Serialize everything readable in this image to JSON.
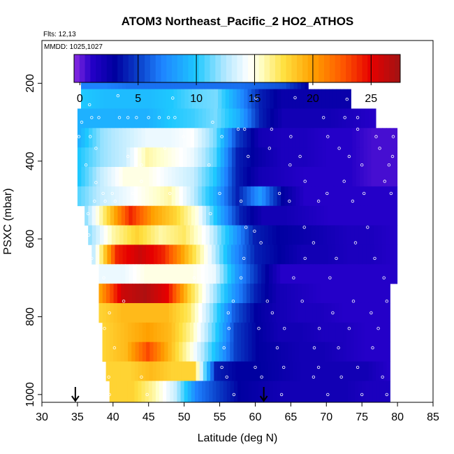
{
  "chart_data": {
    "type": "heatmap",
    "title": "ATOM3 Northeast_Pacific_2 HO2_ATHOS",
    "subtitle_lines": [
      "Flts: 12,13",
      "MMDD: 1025,1027"
    ],
    "xlabel": "Latitude (deg N)",
    "ylabel": "PSXC (mbar)",
    "xlim": [
      30,
      85
    ],
    "ylim": [
      1020,
      90
    ],
    "x_ticks": [
      30,
      35,
      40,
      45,
      50,
      55,
      60,
      65,
      70,
      75,
      80,
      85
    ],
    "y_ticks": [
      200,
      400,
      600,
      800,
      1000
    ],
    "colorbar": {
      "range": [
        -0.5,
        27.5
      ],
      "ticks": [
        0,
        5,
        10,
        15,
        20,
        25
      ],
      "major_tick_marks": [
        5,
        10,
        15,
        20,
        25
      ],
      "stops": [
        {
          "v": -0.5,
          "c": "#8a2be2"
        },
        {
          "v": 1.0,
          "c": "#2400c8"
        },
        {
          "v": 3.0,
          "c": "#0000a0"
        },
        {
          "v": 5.0,
          "c": "#0a3ec8"
        },
        {
          "v": 7.0,
          "c": "#1e82ff"
        },
        {
          "v": 10.0,
          "c": "#1ec8ff"
        },
        {
          "v": 12.5,
          "c": "#b4e8ff"
        },
        {
          "v": 14.5,
          "c": "#ffffff"
        },
        {
          "v": 15.5,
          "c": "#ffffc8"
        },
        {
          "v": 17.5,
          "c": "#ffe040"
        },
        {
          "v": 20.0,
          "c": "#ffa000"
        },
        {
          "v": 22.5,
          "c": "#ff5a00"
        },
        {
          "v": 25.0,
          "c": "#e60000"
        },
        {
          "v": 27.5,
          "c": "#a01414"
        }
      ]
    },
    "pressure_bins": [
      {
        "p": [
          175,
          215
        ],
        "lat": [
          35.5,
          67.5
        ],
        "values": [
          7,
          7,
          6.5,
          6.5,
          6.5,
          6.5,
          6.5,
          6.5,
          6,
          5.5,
          3
        ]
      },
      {
        "p": [
          215,
          265
        ],
        "lat": [
          35.5,
          73.5
        ],
        "values": [
          10,
          9.5,
          9.5,
          9.5,
          10,
          11,
          11.5,
          8,
          4,
          2.5,
          2.5,
          2.5,
          2.5
        ]
      },
      {
        "p": [
          265,
          315
        ],
        "lat": [
          35,
          77
        ],
        "values": [
          9,
          9,
          9,
          9,
          10,
          10.5,
          11.5,
          9,
          4,
          2,
          2,
          2,
          1.5,
          1
        ]
      },
      {
        "p": [
          315,
          365
        ],
        "lat": [
          35,
          80
        ],
        "values": [
          9,
          12,
          13,
          14,
          14,
          14.5,
          11.5,
          5,
          2,
          1.5,
          1.5,
          1,
          1,
          0.5,
          0.5
        ]
      },
      {
        "p": [
          365,
          415
        ],
        "lat": [
          35,
          80
        ],
        "values": [
          10,
          12,
          13,
          16,
          15,
          14,
          11,
          4,
          2.5,
          1.5,
          1.5,
          1,
          1,
          0.5,
          0.5
        ]
      },
      {
        "p": [
          415,
          465
        ],
        "lat": [
          35,
          80
        ],
        "values": [
          10,
          13,
          15,
          15,
          14,
          13,
          10,
          4,
          2,
          1.5,
          1,
          1,
          1,
          0.5,
          0.5
        ]
      },
      {
        "p": [
          465,
          515
        ],
        "lat": [
          35,
          80
        ],
        "values": [
          11,
          13,
          14,
          15,
          16,
          13,
          9,
          4,
          8,
          3,
          1,
          1,
          1,
          1,
          1
        ]
      },
      {
        "p": [
          515,
          565
        ],
        "lat": [
          36,
          80
        ],
        "values": [
          12,
          18,
          24,
          20,
          18,
          15,
          9,
          4,
          2,
          2,
          1.5,
          1,
          1,
          1,
          1
        ]
      },
      {
        "p": [
          565,
          615
        ],
        "lat": [
          36.5,
          80
        ],
        "values": [
          12,
          16,
          18,
          16,
          17,
          14,
          9,
          4,
          3,
          2.5,
          2,
          1.5,
          1.5,
          1
        ]
      },
      {
        "p": [
          615,
          665
        ],
        "lat": [
          37,
          80
        ],
        "values": [
          13,
          24,
          26,
          24,
          19,
          14,
          8,
          4,
          3,
          2,
          2,
          1.5,
          1.5,
          1
        ]
      },
      {
        "p": [
          665,
          715
        ],
        "lat": [
          38,
          80
        ],
        "values": [
          14,
          14,
          15,
          15,
          15,
          14,
          8,
          4,
          1,
          1,
          1,
          1,
          1,
          1
        ]
      },
      {
        "p": [
          715,
          765
        ],
        "lat": [
          38,
          79
        ],
        "values": [
          20,
          26,
          27,
          25,
          18,
          13,
          8,
          4,
          2,
          1.5,
          1,
          1,
          1,
          1
        ]
      },
      {
        "p": [
          765,
          815
        ],
        "lat": [
          38,
          79
        ],
        "values": [
          18,
          19,
          19,
          19,
          17,
          12,
          6,
          3,
          2,
          1.5,
          1.5,
          1,
          1,
          1
        ]
      },
      {
        "p": [
          815,
          865
        ],
        "lat": [
          38.5,
          79
        ],
        "values": [
          18,
          19,
          20,
          19,
          16,
          11,
          5,
          3,
          2,
          2,
          1.5,
          1.5,
          1,
          1
        ]
      },
      {
        "p": [
          865,
          915
        ],
        "lat": [
          38.5,
          79
        ],
        "values": [
          18,
          19,
          23,
          19,
          15,
          10,
          5,
          3,
          2.5,
          2,
          2,
          1.5,
          1,
          1
        ]
      },
      {
        "p": [
          915,
          965
        ],
        "lat": [
          39,
          79
        ],
        "values": [
          18,
          18,
          19,
          18,
          18,
          4,
          3,
          3,
          2.5,
          2,
          2,
          2,
          2,
          1
        ]
      },
      {
        "p": [
          965,
          1020
        ],
        "lat": [
          39.5,
          79
        ],
        "values": [
          18,
          18,
          16,
          13,
          7,
          5,
          3,
          2.5,
          2,
          2,
          2,
          2,
          1.5,
          1.5
        ]
      }
    ],
    "markers": [
      {
        "type": "arrow-down",
        "x": 34.7,
        "y": 1000
      },
      {
        "type": "arrow-down",
        "x": 61.2,
        "y": 1000
      }
    ],
    "data_points_style": "white open circles",
    "sample_points": [
      [
        37.5,
        180
      ],
      [
        60.7,
        183
      ],
      [
        63.5,
        190
      ],
      [
        66.3,
        183
      ],
      [
        40.7,
        232
      ],
      [
        36.7,
        255
      ],
      [
        65.6,
        237
      ],
      [
        72.9,
        241
      ],
      [
        48.4,
        238
      ],
      [
        60.1,
        238
      ],
      [
        37.0,
        288
      ],
      [
        38.0,
        288
      ],
      [
        40.9,
        288
      ],
      [
        42.1,
        288
      ],
      [
        43.3,
        288
      ],
      [
        45.0,
        288
      ],
      [
        46.5,
        288
      ],
      [
        47.8,
        288
      ],
      [
        48.7,
        288
      ],
      [
        69.6,
        288
      ],
      [
        72.6,
        288
      ],
      [
        74.4,
        288
      ],
      [
        35.6,
        300
      ],
      [
        54.0,
        300
      ],
      [
        57.6,
        318
      ],
      [
        58.5,
        318
      ],
      [
        62.3,
        318
      ],
      [
        74.4,
        318
      ],
      [
        35.2,
        337
      ],
      [
        36.8,
        337
      ],
      [
        49.9,
        337
      ],
      [
        55.3,
        337
      ],
      [
        65.0,
        337
      ],
      [
        70.2,
        337
      ],
      [
        77.0,
        337
      ],
      [
        79.4,
        337
      ],
      [
        37.6,
        367
      ],
      [
        47.3,
        367
      ],
      [
        62.0,
        367
      ],
      [
        71.8,
        367
      ],
      [
        77.5,
        367
      ],
      [
        42.1,
        388
      ],
      [
        59.0,
        388
      ],
      [
        66.3,
        388
      ],
      [
        73.2,
        388
      ],
      [
        79.3,
        388
      ],
      [
        36.2,
        410
      ],
      [
        44.0,
        410
      ],
      [
        53.5,
        410
      ],
      [
        64.9,
        410
      ],
      [
        75.0,
        410
      ],
      [
        78.8,
        410
      ],
      [
        37.6,
        455
      ],
      [
        44.0,
        452
      ],
      [
        67.0,
        452
      ],
      [
        72.5,
        452
      ],
      [
        78.2,
        452
      ],
      [
        38.6,
        483
      ],
      [
        39.9,
        483
      ],
      [
        42.8,
        483
      ],
      [
        48.0,
        483
      ],
      [
        55.0,
        483
      ],
      [
        63.4,
        483
      ],
      [
        70.1,
        483
      ],
      [
        75.3,
        483
      ],
      [
        79.1,
        483
      ],
      [
        37.4,
        503
      ],
      [
        38.9,
        503
      ],
      [
        40.3,
        503
      ],
      [
        58.0,
        503
      ],
      [
        64.8,
        503
      ],
      [
        68.9,
        503
      ],
      [
        73.7,
        503
      ],
      [
        36.5,
        535
      ],
      [
        53.7,
        535
      ],
      [
        58.7,
        570
      ],
      [
        59.9,
        580
      ],
      [
        66.9,
        570
      ],
      [
        75.8,
        570
      ],
      [
        36.6,
        590
      ],
      [
        60.8,
        610
      ],
      [
        68.2,
        610
      ],
      [
        74.1,
        610
      ],
      [
        37.0,
        650
      ],
      [
        58.4,
        650
      ],
      [
        67.0,
        650
      ],
      [
        71.4,
        650
      ],
      [
        76.8,
        650
      ],
      [
        38.7,
        700
      ],
      [
        51.4,
        700
      ],
      [
        58.0,
        700
      ],
      [
        65.4,
        700
      ],
      [
        70.5,
        700
      ],
      [
        78.1,
        700
      ],
      [
        41.5,
        760
      ],
      [
        52.7,
        760
      ],
      [
        56.9,
        760
      ],
      [
        61.7,
        760
      ],
      [
        66.6,
        760
      ],
      [
        73.8,
        760
      ],
      [
        78.5,
        760
      ],
      [
        39.5,
        790
      ],
      [
        56.2,
        790
      ],
      [
        62.4,
        790
      ],
      [
        70.9,
        790
      ],
      [
        76.3,
        790
      ],
      [
        38.8,
        830
      ],
      [
        56.3,
        830
      ],
      [
        60.5,
        830
      ],
      [
        64.1,
        830
      ],
      [
        69.0,
        830
      ],
      [
        73.2,
        830
      ],
      [
        77.3,
        830
      ],
      [
        40.2,
        880
      ],
      [
        55.6,
        880
      ],
      [
        63.1,
        880
      ],
      [
        68.3,
        880
      ],
      [
        71.7,
        880
      ],
      [
        76.5,
        880
      ],
      [
        38.4,
        930
      ],
      [
        55.3,
        930
      ],
      [
        60.0,
        930
      ],
      [
        64.0,
        930
      ],
      [
        68.9,
        930
      ],
      [
        74.4,
        930
      ],
      [
        39.4,
        955
      ],
      [
        44.0,
        955
      ],
      [
        56.0,
        955
      ],
      [
        60.9,
        955
      ],
      [
        68.2,
        955
      ],
      [
        72.1,
        955
      ],
      [
        77.9,
        955
      ],
      [
        39.5,
        1000
      ],
      [
        44.8,
        1000
      ],
      [
        57.0,
        1000
      ],
      [
        63.7,
        1000
      ],
      [
        70.2,
        1000
      ],
      [
        75.0,
        1000
      ],
      [
        78.5,
        1000
      ]
    ]
  }
}
